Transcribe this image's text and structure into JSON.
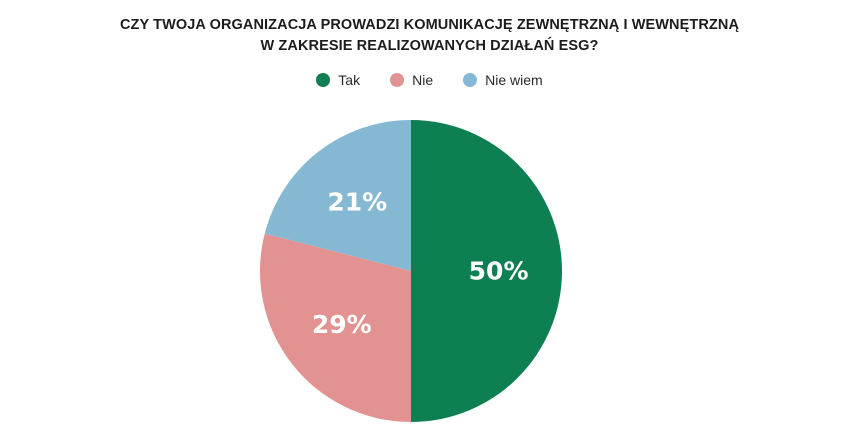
{
  "chart_data": {
    "type": "pie",
    "title": "CZY TWOJA ORGANIZACJA PROWADZI KOMUNIKACJĘ ZEWNĘTRZNĄ I WEWNĘTRZNĄ W ZAKRESIE REALIZOWANYCH DZIAŁAŃ ESG?",
    "title_lines": [
      "CZY TWOJA ORGANIZACJA PROWADZI KOMUNIKACJĘ ZEWNĘTRZNĄ I WEWNĘTRZNĄ",
      "W ZAKRESIE REALIZOWANYCH DZIAŁAŃ ESG?"
    ],
    "legend_position": "top",
    "slices": [
      {
        "name": "Tak",
        "value": 50,
        "label": "50%",
        "color": "#0d7f50"
      },
      {
        "name": "Nie",
        "value": 29,
        "label": "29%",
        "color": "#e29391"
      },
      {
        "name": "Nie wiem",
        "value": 21,
        "label": "21%",
        "color": "#85b9d3"
      }
    ]
  }
}
